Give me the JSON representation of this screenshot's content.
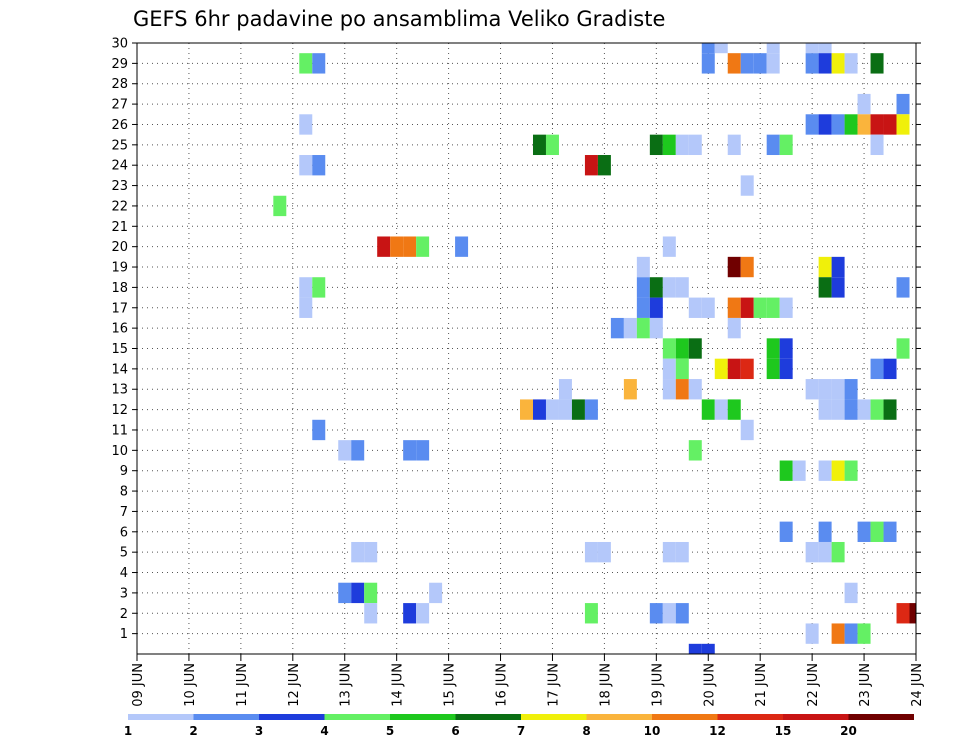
{
  "chart_data": {
    "type": "heatmap",
    "title": "GEFS 6hr padavine po ansamblima Veliko Gradiste",
    "xlabel": "",
    "ylabel": "",
    "x_ticks": [
      "09 JUN",
      "10 JUN",
      "11 JUN",
      "12 JUN",
      "13 JUN",
      "14 JUN",
      "15 JUN",
      "16 JUN",
      "17 JUN",
      "18 JUN",
      "19 JUN",
      "20 JUN",
      "21 JUN",
      "22 JUN",
      "23 JUN",
      "24 JUN"
    ],
    "y_ticks": [
      "1",
      "2",
      "3",
      "4",
      "5",
      "6",
      "7",
      "8",
      "9",
      "10",
      "11",
      "12",
      "13",
      "14",
      "15",
      "16",
      "17",
      "18",
      "19",
      "20",
      "21",
      "22",
      "23",
      "24",
      "25",
      "26",
      "27",
      "28",
      "29",
      "30"
    ],
    "x_range_days": [
      0,
      15
    ],
    "y_range": [
      0,
      30
    ],
    "grid": true,
    "legend_position": "bottom",
    "legend": {
      "labels": [
        "1",
        "2",
        "3",
        "4",
        "5",
        "6",
        "7",
        "8",
        "10",
        "12",
        "15",
        "20"
      ],
      "colors": [
        "#b4c8fa",
        "#5a8cf0",
        "#1e3cdc",
        "#64f064",
        "#1ec81e",
        "#0a6e14",
        "#f0f00a",
        "#fab43c",
        "#f07814",
        "#dc2814",
        "#c81414",
        "#700000"
      ]
    },
    "series": [
      {
        "member": 30,
        "cells": [
          [
            11.0,
            2
          ],
          [
            11.25,
            1
          ],
          [
            12.25,
            1
          ],
          [
            13.0,
            1
          ],
          [
            13.25,
            1
          ]
        ]
      },
      {
        "member": 29,
        "cells": [
          [
            3.25,
            4
          ],
          [
            3.5,
            2
          ],
          [
            11.0,
            2
          ],
          [
            11.5,
            9
          ],
          [
            11.75,
            2
          ],
          [
            12.0,
            2
          ],
          [
            12.25,
            1
          ],
          [
            13.0,
            2
          ],
          [
            13.25,
            3
          ],
          [
            13.5,
            7
          ],
          [
            13.75,
            1
          ],
          [
            14.25,
            6
          ]
        ]
      },
      {
        "member": 27,
        "cells": [
          [
            14.0,
            1
          ],
          [
            14.75,
            2
          ]
        ]
      },
      {
        "member": 26,
        "cells": [
          [
            3.25,
            1
          ],
          [
            13.0,
            2
          ],
          [
            13.25,
            3
          ],
          [
            13.5,
            2
          ],
          [
            13.75,
            5
          ],
          [
            14.0,
            8
          ],
          [
            14.25,
            11
          ],
          [
            14.5,
            11
          ],
          [
            14.75,
            7
          ]
        ]
      },
      {
        "member": 25,
        "cells": [
          [
            7.75,
            6
          ],
          [
            8.0,
            4
          ],
          [
            10.0,
            6
          ],
          [
            10.25,
            5
          ],
          [
            10.5,
            1
          ],
          [
            10.75,
            1
          ],
          [
            11.5,
            1
          ],
          [
            12.25,
            2
          ],
          [
            12.5,
            4
          ],
          [
            14.25,
            1
          ]
        ]
      },
      {
        "member": 24,
        "cells": [
          [
            3.25,
            1
          ],
          [
            3.5,
            2
          ],
          [
            8.75,
            11
          ],
          [
            9.0,
            6
          ]
        ]
      },
      {
        "member": 23,
        "cells": [
          [
            11.75,
            1
          ]
        ]
      },
      {
        "member": 22,
        "cells": [
          [
            2.75,
            4
          ]
        ]
      },
      {
        "member": 20,
        "cells": [
          [
            4.75,
            11
          ],
          [
            5.0,
            9
          ],
          [
            5.25,
            9
          ],
          [
            5.5,
            4
          ],
          [
            6.25,
            2
          ],
          [
            10.25,
            1
          ]
        ]
      },
      {
        "member": 19,
        "cells": [
          [
            9.75,
            1
          ],
          [
            11.5,
            12
          ],
          [
            11.75,
            9
          ],
          [
            13.25,
            7
          ],
          [
            13.5,
            3
          ]
        ]
      },
      {
        "member": 18,
        "cells": [
          [
            3.25,
            1
          ],
          [
            3.5,
            4
          ],
          [
            9.75,
            2
          ],
          [
            10.0,
            6
          ],
          [
            10.25,
            1
          ],
          [
            10.5,
            1
          ],
          [
            13.25,
            6
          ],
          [
            13.5,
            3
          ],
          [
            14.75,
            2
          ]
        ]
      },
      {
        "member": 17,
        "cells": [
          [
            3.25,
            1
          ],
          [
            9.75,
            2
          ],
          [
            10.0,
            3
          ],
          [
            10.75,
            1
          ],
          [
            11.0,
            1
          ],
          [
            11.5,
            9
          ],
          [
            11.75,
            11
          ],
          [
            12.0,
            4
          ],
          [
            12.25,
            4
          ],
          [
            12.5,
            1
          ]
        ]
      },
      {
        "member": 16,
        "cells": [
          [
            9.25,
            2
          ],
          [
            9.5,
            1
          ],
          [
            9.75,
            4
          ],
          [
            10.0,
            1
          ],
          [
            11.5,
            1
          ]
        ]
      },
      {
        "member": 15,
        "cells": [
          [
            10.25,
            4
          ],
          [
            10.5,
            5
          ],
          [
            10.75,
            6
          ],
          [
            12.25,
            5
          ],
          [
            12.5,
            3
          ],
          [
            14.75,
            4
          ]
        ]
      },
      {
        "member": 14,
        "cells": [
          [
            10.25,
            1
          ],
          [
            10.5,
            4
          ],
          [
            11.25,
            7
          ],
          [
            11.5,
            11
          ],
          [
            11.75,
            10
          ],
          [
            12.25,
            5
          ],
          [
            12.5,
            3
          ],
          [
            14.25,
            2
          ],
          [
            14.5,
            3
          ]
        ]
      },
      {
        "member": 13,
        "cells": [
          [
            8.25,
            1
          ],
          [
            9.5,
            8
          ],
          [
            10.25,
            1
          ],
          [
            10.5,
            9
          ],
          [
            10.75,
            1
          ],
          [
            13.0,
            1
          ],
          [
            13.25,
            1
          ],
          [
            13.5,
            1
          ],
          [
            13.75,
            2
          ]
        ]
      },
      {
        "member": 12,
        "cells": [
          [
            7.5,
            8
          ],
          [
            7.75,
            3
          ],
          [
            8.0,
            1
          ],
          [
            8.25,
            1
          ],
          [
            8.5,
            6
          ],
          [
            8.75,
            2
          ],
          [
            11.0,
            5
          ],
          [
            11.25,
            1
          ],
          [
            11.5,
            5
          ],
          [
            13.25,
            1
          ],
          [
            13.5,
            1
          ],
          [
            13.75,
            2
          ],
          [
            14.0,
            1
          ],
          [
            14.25,
            4
          ],
          [
            14.5,
            6
          ]
        ]
      },
      {
        "member": 11,
        "cells": [
          [
            3.5,
            2
          ],
          [
            11.75,
            1
          ]
        ]
      },
      {
        "member": 10,
        "cells": [
          [
            4.0,
            1
          ],
          [
            4.25,
            2
          ],
          [
            5.25,
            2
          ],
          [
            5.5,
            2
          ],
          [
            10.75,
            4
          ]
        ]
      },
      {
        "member": 9,
        "cells": [
          [
            12.5,
            5
          ],
          [
            12.75,
            1
          ],
          [
            13.25,
            1
          ],
          [
            13.5,
            7
          ],
          [
            13.75,
            4
          ]
        ]
      },
      {
        "member": 6,
        "cells": [
          [
            12.5,
            2
          ],
          [
            13.25,
            2
          ],
          [
            14.0,
            2
          ],
          [
            14.25,
            4
          ],
          [
            14.5,
            2
          ]
        ]
      },
      {
        "member": 5,
        "cells": [
          [
            4.25,
            1
          ],
          [
            4.5,
            1
          ],
          [
            8.75,
            1
          ],
          [
            9.0,
            1
          ],
          [
            10.25,
            1
          ],
          [
            10.5,
            1
          ],
          [
            13.0,
            1
          ],
          [
            13.25,
            1
          ],
          [
            13.5,
            4
          ]
        ]
      },
      {
        "member": 3,
        "cells": [
          [
            4.0,
            2
          ],
          [
            4.25,
            3
          ],
          [
            4.5,
            4
          ],
          [
            5.75,
            1
          ],
          [
            13.75,
            1
          ]
        ]
      },
      {
        "member": 2,
        "cells": [
          [
            4.5,
            1
          ],
          [
            5.25,
            3
          ],
          [
            5.5,
            1
          ],
          [
            8.75,
            4
          ],
          [
            10.0,
            2
          ],
          [
            10.25,
            1
          ],
          [
            10.5,
            2
          ],
          [
            14.75,
            10
          ],
          [
            15.0,
            12
          ]
        ]
      },
      {
        "member": 1,
        "cells": [
          [
            13.0,
            1
          ],
          [
            13.5,
            9
          ],
          [
            13.75,
            2
          ],
          [
            14.0,
            4
          ]
        ]
      },
      {
        "member": 0,
        "cells": [
          [
            10.75,
            3
          ],
          [
            11.0,
            3
          ]
        ]
      }
    ]
  }
}
